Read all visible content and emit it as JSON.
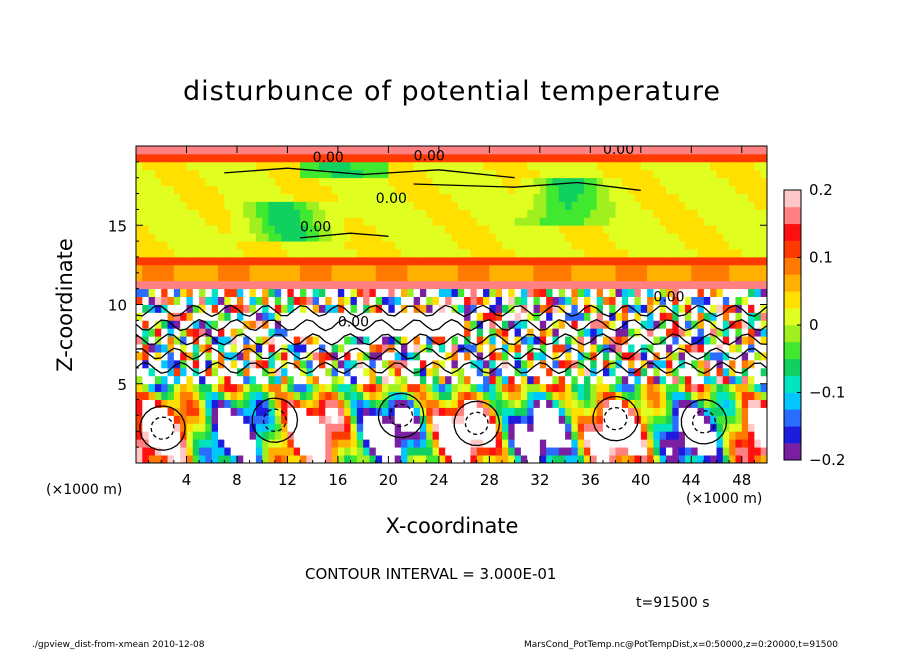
{
  "chart_data": {
    "type": "heatmap",
    "title": "disturbunce of potential temperature",
    "xlabel": "X-coordinate",
    "ylabel": "Z-coordinate",
    "x_unit_left": "(×1000 m)",
    "x_unit_right": "(×1000 m)",
    "xlim": [
      0,
      50
    ],
    "ylim": [
      0,
      20
    ],
    "xticks": [
      4,
      8,
      12,
      16,
      20,
      24,
      28,
      32,
      36,
      40,
      44,
      48
    ],
    "xtick_labels": [
      "4",
      "8",
      "12",
      "16",
      "20",
      "24",
      "28",
      "32",
      "36",
      "40",
      "44",
      "48"
    ],
    "yticks": [
      5,
      10,
      15
    ],
    "ytick_labels": [
      "5",
      "10",
      "15"
    ],
    "colorbar": {
      "range": [
        -0.2,
        0.2
      ],
      "ticks": [
        0.2,
        0.1,
        0,
        -0.1,
        -0.2
      ],
      "tick_labels": [
        "0.2",
        "0.1",
        "0",
        "−0.1",
        "−0.2"
      ],
      "colors": [
        "#7a1fa2",
        "#1c1ce0",
        "#2a6cff",
        "#00c8ff",
        "#00e5c0",
        "#10d060",
        "#40e830",
        "#a0f020",
        "#e0ff20",
        "#ffe000",
        "#ffb000",
        "#ff7a00",
        "#ff3a00",
        "#ff1010",
        "#ff8080",
        "#ffc8c8"
      ]
    },
    "contour_labels": [
      "0.00",
      "0.00",
      "0.00",
      "0.00",
      "0.00",
      "0.00",
      "0.00"
    ],
    "grid": false
  },
  "contour_interval": "CONTOUR INTERVAL = 3.000E-01",
  "time_label": "t=91500 s",
  "footer_left": "./gpview_dist-from-xmean   2010-12-08",
  "footer_right": "MarsCond_PotTemp.nc@PotTempDist,x=0:50000,z=0:20000,t=91500"
}
